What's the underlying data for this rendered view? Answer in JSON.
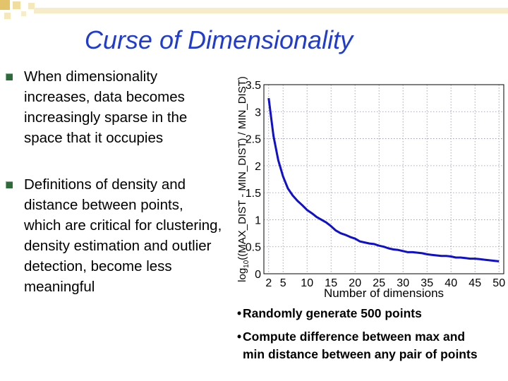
{
  "slide": {
    "title": "Curse of Dimensionality",
    "bullets": [
      "When dimensionality increases, data becomes increasingly sparse in the space that it occupies",
      "Definitions of density and distance between points, which are critical for clustering, density estimation and outlier detection, become less meaningful"
    ],
    "notes": {
      "bullet_glyph": "•",
      "note1": "Randomly generate 500 points",
      "note2_line1": "Compute difference between max and",
      "note2_line2": "min distance between any pair of points"
    }
  },
  "colors": {
    "title": "#1f3bd0",
    "series": "#1010c8",
    "bullet": "#2f6b3a",
    "grid": "#9090a8"
  },
  "chart_data": {
    "type": "line",
    "xlabel": "Number of dimensions",
    "ylabel_prefix": "log",
    "ylabel_sub": "10",
    "ylabel_rest": "((MAX_DIST - MIN_DIST) / MIN_DIST)",
    "xlim": [
      1,
      51
    ],
    "ylim": [
      0,
      3.5
    ],
    "xticks": [
      2,
      5,
      10,
      15,
      20,
      25,
      30,
      35,
      40,
      45,
      50
    ],
    "yticks": [
      0,
      0.5,
      1,
      1.5,
      2,
      2.5,
      3,
      3.5
    ],
    "ytick_labels": [
      "0",
      "0.5",
      "1",
      "1.5",
      "2",
      "2.5",
      "3",
      "3.5"
    ],
    "grid": true,
    "series": [
      {
        "x": [
          2,
          3,
          4,
          5,
          6,
          7,
          8,
          9,
          10,
          11,
          12,
          13,
          14,
          15,
          16,
          17,
          18,
          19,
          20,
          21,
          22,
          23,
          24,
          25,
          26,
          27,
          28,
          29,
          30,
          31,
          32,
          33,
          34,
          35,
          36,
          37,
          38,
          39,
          40,
          41,
          42,
          43,
          44,
          45,
          46,
          47,
          48,
          49,
          50
        ],
        "y": [
          3.25,
          2.55,
          2.1,
          1.8,
          1.58,
          1.45,
          1.35,
          1.27,
          1.18,
          1.12,
          1.05,
          1.0,
          0.95,
          0.88,
          0.8,
          0.75,
          0.72,
          0.68,
          0.65,
          0.6,
          0.58,
          0.56,
          0.55,
          0.52,
          0.5,
          0.47,
          0.45,
          0.44,
          0.42,
          0.4,
          0.4,
          0.39,
          0.38,
          0.36,
          0.35,
          0.34,
          0.33,
          0.33,
          0.32,
          0.3,
          0.3,
          0.29,
          0.28,
          0.28,
          0.27,
          0.26,
          0.25,
          0.24,
          0.23
        ]
      }
    ]
  }
}
